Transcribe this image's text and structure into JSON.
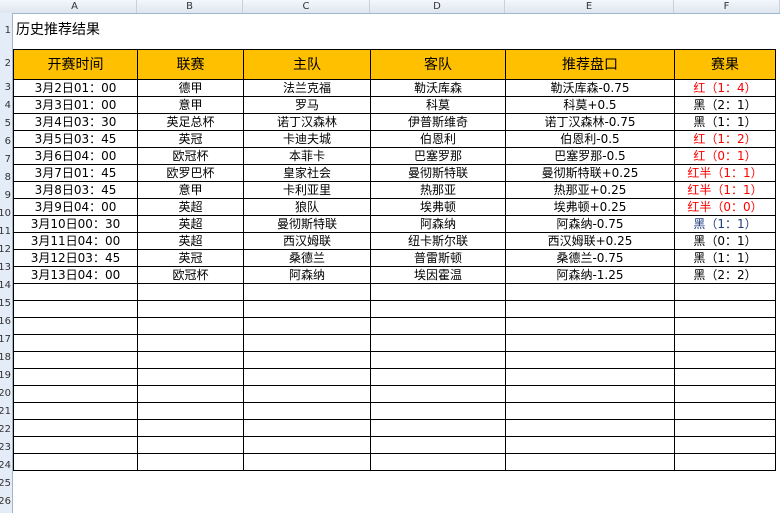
{
  "columns": [
    "A",
    "B",
    "C",
    "D",
    "E",
    "F"
  ],
  "title": "历史推荐结果",
  "headers": [
    "开赛时间",
    "联赛",
    "主队",
    "客队",
    "推荐盘口",
    "赛果"
  ],
  "rows": [
    [
      "3月2日01：00",
      "德甲",
      "法兰克福",
      "勒沃库森",
      "勒沃库森-0.75",
      "红（1：4）",
      "red"
    ],
    [
      "3月3日01：00",
      "意甲",
      "罗马",
      "科莫",
      "科莫+0.5",
      "黑（2：1）",
      "black"
    ],
    [
      "3月4日03：30",
      "英足总杯",
      "诺丁汉森林",
      "伊普斯维奇",
      "诺丁汉森林-0.75",
      "黑（1：1）",
      "black"
    ],
    [
      "3月5日03：45",
      "英冠",
      "卡迪夫城",
      "伯恩利",
      "伯恩利-0.5",
      "红（1：2）",
      "red"
    ],
    [
      "3月6日04：00",
      "欧冠杯",
      "本菲卡",
      "巴塞罗那",
      "巴塞罗那-0.5",
      "红（0：1）",
      "red"
    ],
    [
      "3月7日01：45",
      "欧罗巴杯",
      "皇家社会",
      "曼彻斯特联",
      "曼彻斯特联+0.25",
      "红半（1：1）",
      "red"
    ],
    [
      "3月8日03：45",
      "意甲",
      "卡利亚里",
      "热那亚",
      "热那亚+0.25",
      "红半（1：1）",
      "red"
    ],
    [
      "3月9日04：00",
      "英超",
      "狼队",
      "埃弗顿",
      "埃弗顿+0.25",
      "红半（0：0）",
      "red"
    ],
    [
      "3月10日00：30",
      "英超",
      "曼彻斯特联",
      "阿森纳",
      "阿森纳-0.75",
      "黑（1：1）",
      "navy"
    ],
    [
      "3月11日04：00",
      "英超",
      "西汉姆联",
      "纽卡斯尔联",
      "西汉姆联+0.25",
      "黑（0：1）",
      "black"
    ],
    [
      "3月12日03：45",
      "英冠",
      "桑德兰",
      "普雷斯顿",
      "桑德兰-0.75",
      "黑（1：1）",
      "black"
    ],
    [
      "3月13日04：00",
      "欧冠杯",
      "阿森纳",
      "埃因霍温",
      "阿森纳-1.25",
      "黑（2：2）",
      "black"
    ]
  ],
  "colors": {
    "header_fill": "#ffc000",
    "win": "#ff0000",
    "loss": "#000000"
  }
}
